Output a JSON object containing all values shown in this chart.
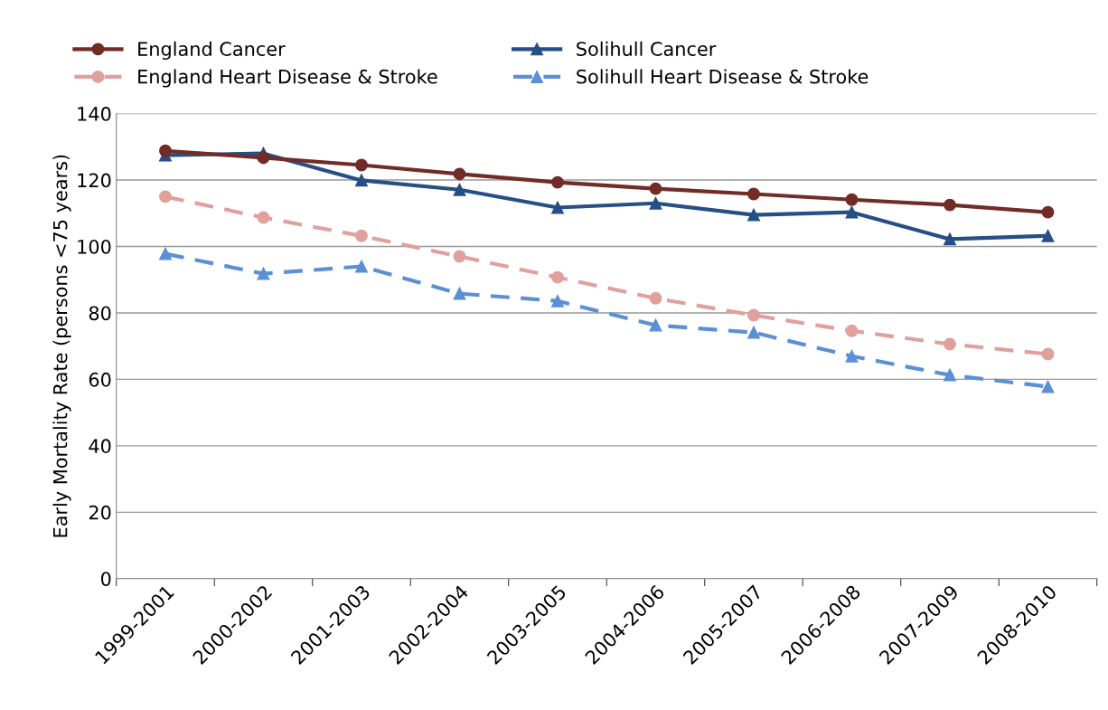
{
  "chart_data": {
    "type": "line",
    "ylabel": "Early Mortality Rate (persons <75 years)",
    "categories": [
      "1999-2001",
      "2000-2002",
      "2001-2003",
      "2002-2004",
      "2003-2005",
      "2004-2006",
      "2005-2007",
      "2006-2008",
      "2007-2009",
      "2008-2010"
    ],
    "series": [
      {
        "name": "England Cancer",
        "color": "#722c27",
        "marker": "circle",
        "line_style": "solid",
        "values": [
          128.8,
          126.7,
          124.5,
          121.8,
          119.3,
          117.4,
          115.8,
          114.1,
          112.5,
          110.3
        ]
      },
      {
        "name": "Solihull Cancer",
        "color": "#254f86",
        "marker": "triangle",
        "line_style": "solid",
        "values": [
          127.5,
          128.0,
          119.9,
          117.1,
          111.7,
          113.0,
          109.5,
          110.3,
          102.2,
          103.2
        ]
      },
      {
        "name": "England Heart Disease & Stroke",
        "color": "#e0a09c",
        "marker": "circle",
        "line_style": "dashed",
        "values": [
          115.0,
          108.7,
          103.2,
          97.0,
          90.7,
          84.4,
          79.3,
          74.6,
          70.6,
          67.6
        ]
      },
      {
        "name": "Solihull Heart Disease & Stroke",
        "color": "#5b8fd6",
        "marker": "triangle",
        "line_style": "dashed",
        "values": [
          97.8,
          91.8,
          94.0,
          85.8,
          83.6,
          76.3,
          74.1,
          67.0,
          61.3,
          57.8
        ]
      }
    ],
    "ylim": [
      0,
      140
    ],
    "yticks": [
      0,
      20,
      40,
      60,
      80,
      100,
      120,
      140
    ],
    "grid": "y",
    "legend": "top"
  }
}
